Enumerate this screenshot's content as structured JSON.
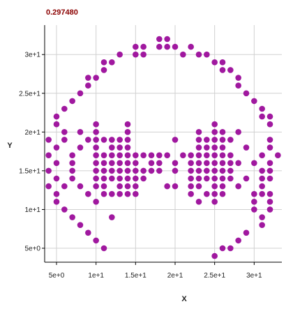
{
  "chart_data": {
    "type": "scatter",
    "title": "0.297480",
    "xlabel": "X",
    "ylabel": "Y",
    "xlim": [
      3.5,
      33.5
    ],
    "ylim": [
      3.2,
      33.8
    ],
    "xticks": [
      5,
      10,
      15,
      20,
      25,
      30
    ],
    "xtick_labels": [
      "5e+0",
      "1e+1",
      "1.5e+1",
      "2e+1",
      "2.5e+1",
      "3e+1"
    ],
    "yticks": [
      5,
      10,
      15,
      20,
      25,
      30
    ],
    "ytick_labels": [
      "5e+0",
      "1e+1",
      "1.5e+1",
      "2e+1",
      "2.5e+1",
      "3e+1"
    ],
    "grid": true,
    "marker_color": "#a0189f",
    "points": [
      [
        18,
        32
      ],
      [
        19,
        32
      ],
      [
        18,
        31
      ],
      [
        19,
        31
      ],
      [
        20,
        31
      ],
      [
        15,
        31
      ],
      [
        16,
        31
      ],
      [
        22,
        31
      ],
      [
        15,
        30
      ],
      [
        16,
        30
      ],
      [
        13,
        30
      ],
      [
        21,
        30
      ],
      [
        23,
        30
      ],
      [
        24,
        30
      ],
      [
        12,
        29
      ],
      [
        11,
        29
      ],
      [
        25,
        29
      ],
      [
        26,
        29
      ],
      [
        11,
        28
      ],
      [
        26,
        28
      ],
      [
        27,
        28
      ],
      [
        10,
        27
      ],
      [
        9,
        27
      ],
      [
        28,
        27
      ],
      [
        9,
        26
      ],
      [
        28,
        26
      ],
      [
        8,
        25
      ],
      [
        29,
        25
      ],
      [
        7,
        24
      ],
      [
        30,
        24
      ],
      [
        6,
        23
      ],
      [
        31,
        23
      ],
      [
        5,
        22
      ],
      [
        31,
        22
      ],
      [
        32,
        22
      ],
      [
        5,
        21
      ],
      [
        10,
        21
      ],
      [
        14,
        21
      ],
      [
        25,
        21
      ],
      [
        32,
        21
      ],
      [
        6,
        20
      ],
      [
        8,
        20
      ],
      [
        10,
        20
      ],
      [
        14,
        20
      ],
      [
        23,
        20
      ],
      [
        25,
        20
      ],
      [
        26,
        20
      ],
      [
        28,
        20
      ],
      [
        4,
        19
      ],
      [
        6,
        19
      ],
      [
        9,
        19
      ],
      [
        10,
        19
      ],
      [
        11,
        19
      ],
      [
        12,
        19
      ],
      [
        13,
        19
      ],
      [
        14,
        19
      ],
      [
        20,
        19
      ],
      [
        23,
        19
      ],
      [
        24,
        19
      ],
      [
        25,
        19
      ],
      [
        26,
        19
      ],
      [
        27,
        19
      ],
      [
        32,
        19
      ],
      [
        5,
        18
      ],
      [
        8,
        18
      ],
      [
        10,
        18
      ],
      [
        12,
        18
      ],
      [
        13,
        18
      ],
      [
        14,
        18
      ],
      [
        23,
        18
      ],
      [
        24,
        18
      ],
      [
        25,
        18
      ],
      [
        26,
        18
      ],
      [
        29,
        18
      ],
      [
        32,
        18
      ],
      [
        4,
        17
      ],
      [
        7,
        17
      ],
      [
        10,
        17
      ],
      [
        11,
        17
      ],
      [
        12,
        17
      ],
      [
        13,
        17
      ],
      [
        14,
        17
      ],
      [
        15,
        17
      ],
      [
        16,
        17
      ],
      [
        17,
        17
      ],
      [
        18,
        17
      ],
      [
        19,
        17
      ],
      [
        21,
        17
      ],
      [
        22,
        17
      ],
      [
        23,
        17
      ],
      [
        24,
        17
      ],
      [
        25,
        17
      ],
      [
        26,
        17
      ],
      [
        27,
        17
      ],
      [
        31,
        17
      ],
      [
        33,
        17
      ],
      [
        5,
        16
      ],
      [
        7,
        16
      ],
      [
        10,
        16
      ],
      [
        11,
        16
      ],
      [
        12,
        16
      ],
      [
        13,
        16
      ],
      [
        14,
        16
      ],
      [
        15,
        16
      ],
      [
        17,
        16
      ],
      [
        18,
        16
      ],
      [
        20,
        16
      ],
      [
        22,
        16
      ],
      [
        23,
        16
      ],
      [
        24,
        16
      ],
      [
        25,
        16
      ],
      [
        26,
        16
      ],
      [
        27,
        16
      ],
      [
        28,
        16
      ],
      [
        30,
        16
      ],
      [
        32,
        16
      ],
      [
        4,
        15
      ],
      [
        7,
        15
      ],
      [
        10,
        15
      ],
      [
        11,
        15
      ],
      [
        12,
        15
      ],
      [
        13,
        15
      ],
      [
        14,
        15
      ],
      [
        15,
        15
      ],
      [
        16,
        15
      ],
      [
        17,
        15
      ],
      [
        18,
        15
      ],
      [
        20,
        15
      ],
      [
        22,
        15
      ],
      [
        23,
        15
      ],
      [
        24,
        15
      ],
      [
        25,
        15
      ],
      [
        26,
        15
      ],
      [
        27,
        15
      ],
      [
        31,
        15
      ],
      [
        32,
        15
      ],
      [
        5,
        14
      ],
      [
        7,
        14
      ],
      [
        10,
        14
      ],
      [
        11,
        14
      ],
      [
        12,
        14
      ],
      [
        13,
        14
      ],
      [
        14,
        14
      ],
      [
        15,
        14
      ],
      [
        16,
        14
      ],
      [
        22,
        14
      ],
      [
        23,
        14
      ],
      [
        24,
        14
      ],
      [
        25,
        14
      ],
      [
        26,
        14
      ],
      [
        27,
        14
      ],
      [
        29,
        14
      ],
      [
        31,
        14
      ],
      [
        32,
        14
      ],
      [
        4,
        13
      ],
      [
        6,
        13
      ],
      [
        8,
        13
      ],
      [
        10,
        13
      ],
      [
        11,
        13
      ],
      [
        13,
        13
      ],
      [
        14,
        13
      ],
      [
        15,
        13
      ],
      [
        19,
        13
      ],
      [
        20,
        13
      ],
      [
        22,
        13
      ],
      [
        23,
        13
      ],
      [
        25,
        13
      ],
      [
        26,
        13
      ],
      [
        28,
        13
      ],
      [
        31,
        13
      ],
      [
        5,
        12
      ],
      [
        9,
        12
      ],
      [
        11,
        12
      ],
      [
        12,
        12
      ],
      [
        13,
        12
      ],
      [
        14,
        12
      ],
      [
        15,
        12
      ],
      [
        22,
        12
      ],
      [
        24,
        12
      ],
      [
        25,
        12
      ],
      [
        26,
        12
      ],
      [
        30,
        12
      ],
      [
        31,
        12
      ],
      [
        32,
        12
      ],
      [
        5,
        11
      ],
      [
        10,
        11
      ],
      [
        23,
        11
      ],
      [
        25,
        11
      ],
      [
        30,
        11
      ],
      [
        32,
        11
      ],
      [
        6,
        10
      ],
      [
        30,
        10
      ],
      [
        32,
        10
      ],
      [
        7,
        9
      ],
      [
        12,
        9
      ],
      [
        31,
        9
      ],
      [
        8,
        8
      ],
      [
        31,
        8
      ],
      [
        9,
        7
      ],
      [
        29,
        7
      ],
      [
        10,
        6
      ],
      [
        28,
        6
      ],
      [
        27,
        5
      ],
      [
        11,
        5
      ],
      [
        26,
        5
      ],
      [
        25,
        4
      ]
    ]
  }
}
